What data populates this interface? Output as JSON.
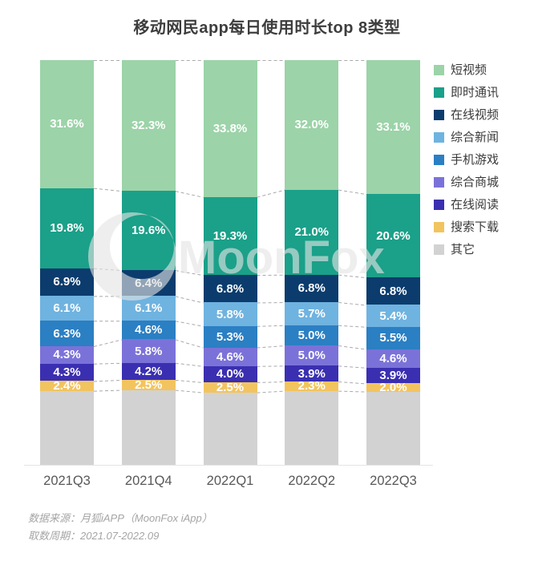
{
  "title": "移动网民app每日使用时长top 8类型",
  "watermark": {
    "text": "MoonFox"
  },
  "footer": {
    "source": "数据来源：月狐iAPP（MoonFox iApp）",
    "period": "取数周期：2021.07-2022.09"
  },
  "chart_data": {
    "type": "bar",
    "subtype": "stacked-100-percent",
    "title": "移动网民app每日使用时长top 8类型",
    "categories": [
      "2021Q3",
      "2021Q4",
      "2022Q1",
      "2022Q2",
      "2022Q3"
    ],
    "series": [
      {
        "name": "短视频",
        "color": "#9cd3a8",
        "values": [
          31.6,
          32.3,
          33.8,
          32.0,
          33.1
        ],
        "show_labels": true
      },
      {
        "name": "即时通讯",
        "color": "#1ba089",
        "values": [
          19.8,
          19.6,
          19.3,
          21.0,
          20.6
        ],
        "show_labels": true
      },
      {
        "name": "在线视频",
        "color": "#0b3c6d",
        "values": [
          6.9,
          6.4,
          6.8,
          6.8,
          6.8
        ],
        "show_labels": true
      },
      {
        "name": "综合新闻",
        "color": "#6fb3e0",
        "values": [
          6.1,
          6.1,
          5.8,
          5.7,
          5.4
        ],
        "show_labels": true
      },
      {
        "name": "手机游戏",
        "color": "#2b7fc3",
        "values": [
          6.3,
          4.6,
          5.3,
          5.0,
          5.5
        ],
        "show_labels": true
      },
      {
        "name": "综合商城",
        "color": "#7b72d9",
        "values": [
          4.3,
          5.8,
          4.6,
          5.0,
          4.6
        ],
        "show_labels": true
      },
      {
        "name": "在线阅读",
        "color": "#3a2fb1",
        "values": [
          4.3,
          4.2,
          4.0,
          3.9,
          3.9
        ],
        "show_labels": true
      },
      {
        "name": "搜索下载",
        "color": "#f2c45f",
        "values": [
          2.4,
          2.5,
          2.5,
          2.3,
          2.0
        ],
        "show_labels": true
      },
      {
        "name": "其它",
        "color": "#d2d2d2",
        "values": [
          18.3,
          18.5,
          17.9,
          18.3,
          18.1
        ],
        "show_labels": false
      }
    ],
    "xlabel": "",
    "ylabel": "",
    "ylim": [
      0,
      100
    ],
    "grid": false,
    "legend_position": "right",
    "value_label_format": "0.0%",
    "connector_lines": "dashed between adjacent bars at every segment boundary"
  }
}
